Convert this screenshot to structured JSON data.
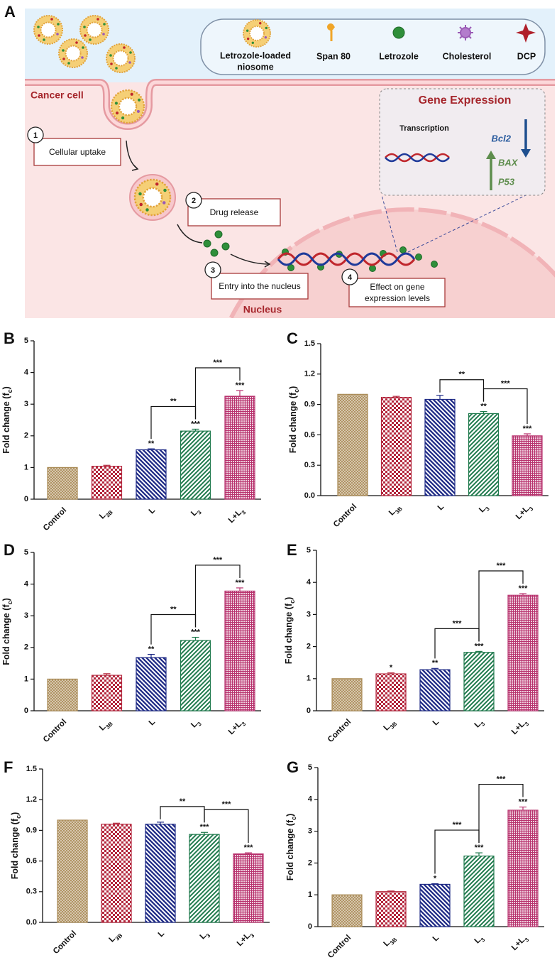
{
  "panel_a": {
    "label": "A",
    "legend": [
      [
        "Letrozole-loaded",
        "niosome"
      ],
      [
        "Span 80"
      ],
      [
        "Letrozole"
      ],
      [
        "Cholesterol"
      ],
      [
        "DCP"
      ]
    ],
    "cell_label": "Cancer cell",
    "nucleus_label": "Nucleus",
    "steps": [
      {
        "number": 1,
        "lines": [
          "Cellular uptake"
        ]
      },
      {
        "number": 2,
        "lines": [
          "Drug release"
        ]
      },
      {
        "number": 3,
        "lines": [
          "Entry into the nucleus"
        ]
      },
      {
        "number": 4,
        "lines": [
          "Effect on gene",
          "expression levels"
        ]
      }
    ],
    "gene_expression": {
      "title": "Gene Expression",
      "transcription": "Transcription",
      "down": "Bcl2",
      "up": [
        "BAX",
        "P53"
      ]
    }
  },
  "chart_data": [
    {
      "type": "bar",
      "panel": "B",
      "ylabel": [
        "Fold change (f",
        "c",
        ")"
      ],
      "categories": [
        [
          "Control"
        ],
        [
          "L",
          "3B"
        ],
        [
          "L"
        ],
        [
          "L",
          "3"
        ],
        [
          "L+L",
          "3"
        ]
      ],
      "values": [
        1.0,
        1.04,
        1.56,
        2.15,
        3.25
      ],
      "errors": [
        null,
        0.03,
        0.03,
        0.06,
        0.18
      ],
      "significance": [
        null,
        null,
        "**",
        "***",
        "***"
      ],
      "comparison_labels": [
        "**",
        "***"
      ],
      "colors": [
        "#a98a55",
        "#b3263c",
        "#1f2b86",
        "#1f7a4d",
        "#b8336e"
      ],
      "ylim": [
        0,
        5
      ],
      "yticks": [
        0,
        1,
        2,
        3,
        4,
        5
      ]
    },
    {
      "type": "bar",
      "panel": "C",
      "ylabel": [
        "Fold change (f",
        "c",
        ")"
      ],
      "categories": [
        [
          "Control"
        ],
        [
          "L",
          "3B"
        ],
        [
          "L"
        ],
        [
          "L",
          "3"
        ],
        [
          "L+L",
          "3"
        ]
      ],
      "values": [
        1.0,
        0.97,
        0.95,
        0.81,
        0.59
      ],
      "errors": [
        null,
        0.01,
        0.04,
        0.02,
        0.02
      ],
      "significance": [
        null,
        null,
        null,
        "**",
        "***"
      ],
      "comparison_labels": [
        "**",
        "***"
      ],
      "colors": [
        "#a98a55",
        "#b3263c",
        "#1f2b86",
        "#1f7a4d",
        "#b8336e"
      ],
      "ylim": [
        0,
        1.5
      ],
      "yticks": [
        {
          "value": 0,
          "label": "0.0"
        },
        0.3,
        0.6,
        0.9,
        1.2,
        1.5
      ]
    },
    {
      "type": "bar",
      "panel": "D",
      "ylabel": [
        "Fold change (f",
        "c",
        ")"
      ],
      "categories": [
        [
          "Control"
        ],
        [
          "L",
          "3B"
        ],
        [
          "L"
        ],
        [
          "L",
          "3"
        ],
        [
          "L+L",
          "3"
        ]
      ],
      "values": [
        1.0,
        1.12,
        1.68,
        2.22,
        3.78
      ],
      "errors": [
        null,
        0.05,
        0.1,
        0.1,
        0.1
      ],
      "significance": [
        null,
        null,
        "**",
        "***",
        "***"
      ],
      "comparison_labels": [
        "**",
        "***"
      ],
      "colors": [
        "#a98a55",
        "#b3263c",
        "#1f2b86",
        "#1f7a4d",
        "#b8336e"
      ],
      "ylim": [
        0,
        5
      ],
      "yticks": [
        0,
        1,
        2,
        3,
        4,
        5
      ]
    },
    {
      "type": "bar",
      "panel": "E",
      "ylabel": [
        "Fold change (f",
        "c",
        ")"
      ],
      "categories": [
        [
          "Control"
        ],
        [
          "L",
          "3B"
        ],
        [
          "L"
        ],
        [
          "L",
          "3"
        ],
        [
          "L+L",
          "3"
        ]
      ],
      "values": [
        1.0,
        1.15,
        1.28,
        1.82,
        3.6
      ],
      "errors": [
        null,
        0.03,
        0.04,
        0.03,
        0.05
      ],
      "significance": [
        null,
        "*",
        "**",
        "***",
        "***"
      ],
      "comparison_labels": [
        "***",
        "***"
      ],
      "colors": [
        "#a98a55",
        "#b3263c",
        "#1f2b86",
        "#1f7a4d",
        "#b8336e"
      ],
      "ylim": [
        0,
        5
      ],
      "yticks": [
        0,
        1,
        2,
        3,
        4,
        5
      ]
    },
    {
      "type": "bar",
      "panel": "F",
      "ylabel": [
        "Fold change (f",
        "c",
        ")"
      ],
      "categories": [
        [
          "Control"
        ],
        [
          "L",
          "3B"
        ],
        [
          "L"
        ],
        [
          "L",
          "3"
        ],
        [
          "L+L",
          "3"
        ]
      ],
      "values": [
        1.0,
        0.96,
        0.96,
        0.86,
        0.67
      ],
      "errors": [
        null,
        0.01,
        0.02,
        0.02,
        0.01
      ],
      "significance": [
        null,
        null,
        null,
        "***",
        "***"
      ],
      "comparison_labels": [
        "**",
        "***"
      ],
      "colors": [
        "#a98a55",
        "#b3263c",
        "#1f2b86",
        "#1f7a4d",
        "#b8336e"
      ],
      "ylim": [
        0,
        1.5
      ],
      "yticks": [
        {
          "value": 0,
          "label": "0.0"
        },
        0.3,
        0.6,
        0.9,
        1.2,
        1.5
      ]
    },
    {
      "type": "bar",
      "panel": "G",
      "ylabel": [
        "Fold change (f",
        "c",
        ")"
      ],
      "categories": [
        [
          "Control"
        ],
        [
          "L",
          "3B"
        ],
        [
          "L"
        ],
        [
          "L",
          "3"
        ],
        [
          "L+L",
          "3"
        ]
      ],
      "values": [
        1.0,
        1.1,
        1.33,
        2.22,
        3.66
      ],
      "errors": [
        null,
        0.02,
        0.02,
        0.1,
        0.1
      ],
      "significance": [
        null,
        null,
        "*",
        "***",
        "***"
      ],
      "comparison_labels": [
        "***",
        "***"
      ],
      "colors": [
        "#a98a55",
        "#b3263c",
        "#1f2b86",
        "#1f7a4d",
        "#b8336e"
      ],
      "ylim": [
        0,
        5
      ],
      "yticks": [
        0,
        1,
        2,
        3,
        4,
        5
      ]
    }
  ]
}
